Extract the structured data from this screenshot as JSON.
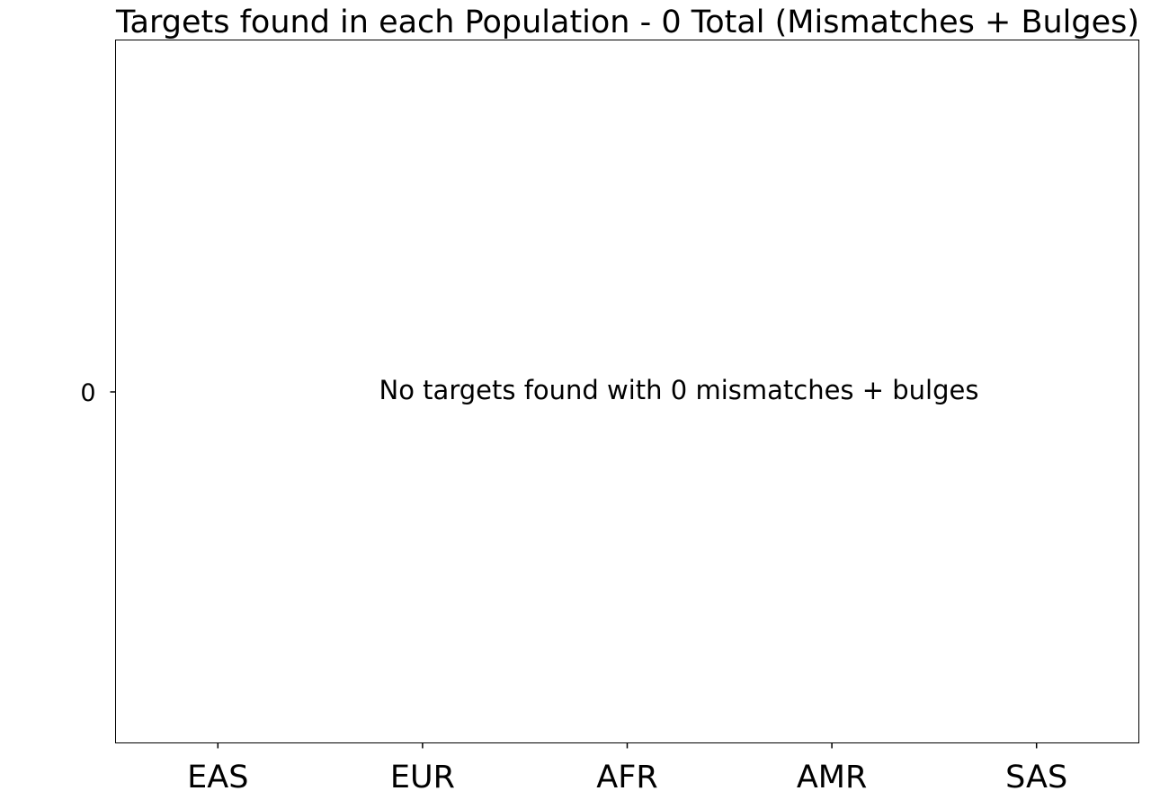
{
  "chart_data": {
    "type": "bar",
    "title": "Targets found in each Population - 0 Total (Mismatches + Bulges)",
    "categories": [
      "EAS",
      "EUR",
      "AFR",
      "AMR",
      "SAS"
    ],
    "values": [
      0,
      0,
      0,
      0,
      0
    ],
    "yticks": [
      0
    ],
    "ytick_labels": [
      "0"
    ],
    "annotation": "No targets found with 0 mismatches + bulges",
    "xlabel": "",
    "ylabel": "",
    "grid": false
  }
}
